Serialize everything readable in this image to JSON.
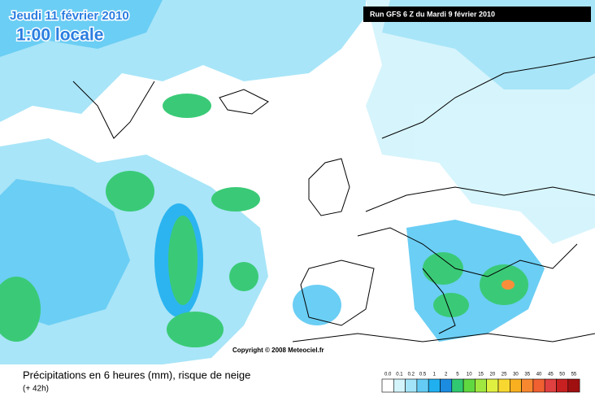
{
  "header": {
    "date": "Jeudi 11 février 2010",
    "time": "1:00 locale",
    "run": "Run GFS 6 Z du Mardi 9 février 2010"
  },
  "copyright": "Copyright © 2008 Meteociel.fr",
  "footer": {
    "title": "Précipitations en 6 heures (mm), risque de neige",
    "lead": "(+ 42h)"
  },
  "legend": [
    {
      "label": "0.0",
      "color": "#ffffff"
    },
    {
      "label": "0.1",
      "color": "#d4f4fc"
    },
    {
      "label": "0.2",
      "color": "#a4e4f8"
    },
    {
      "label": "0.5",
      "color": "#64ccf4"
    },
    {
      "label": "1",
      "color": "#20b0f0"
    },
    {
      "label": "2",
      "color": "#1c8ce0"
    },
    {
      "label": "5",
      "color": "#30c870"
    },
    {
      "label": "10",
      "color": "#60d840"
    },
    {
      "label": "15",
      "color": "#a0e840"
    },
    {
      "label": "20",
      "color": "#e0f040"
    },
    {
      "label": "25",
      "color": "#f8d830"
    },
    {
      "label": "30",
      "color": "#f8b020"
    },
    {
      "label": "35",
      "color": "#f88830"
    },
    {
      "label": "40",
      "color": "#f06030"
    },
    {
      "label": "45",
      "color": "#e04040"
    },
    {
      "label": "50",
      "color": "#c82020"
    },
    {
      "label": "55",
      "color": "#a01010"
    }
  ]
}
